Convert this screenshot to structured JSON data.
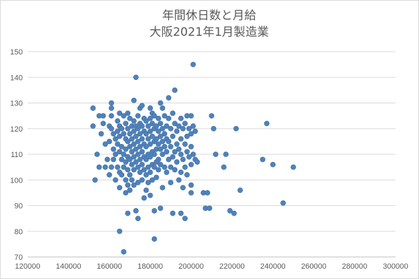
{
  "chart_data": {
    "type": "scatter",
    "title": "年間休日数と月給",
    "subtitle": "大阪2021年1月製造業",
    "xlabel": "",
    "ylabel": "",
    "xlim": [
      120000,
      300000
    ],
    "ylim": [
      70,
      150
    ],
    "x_ticks": [
      "120000",
      "140000",
      "160000",
      "180000",
      "200000",
      "220000",
      "240000",
      "260000",
      "280000",
      "300000"
    ],
    "y_ticks": [
      "70",
      "80",
      "90",
      "100",
      "110",
      "120",
      "130",
      "140",
      "150"
    ],
    "grid": "horizontal",
    "legend": "none",
    "marker_color": "#4f81bd",
    "series": [
      {
        "points": [
          [
            152000,
            128
          ],
          [
            152000,
            121
          ],
          [
            153000,
            100
          ],
          [
            154000,
            110
          ],
          [
            155000,
            125
          ],
          [
            155000,
            105
          ],
          [
            156000,
            118
          ],
          [
            157000,
            122
          ],
          [
            157000,
            125
          ],
          [
            158000,
            105
          ],
          [
            158000,
            114
          ],
          [
            159000,
            108
          ],
          [
            160000,
            102
          ],
          [
            160000,
            115
          ],
          [
            160000,
            121
          ],
          [
            161000,
            130
          ],
          [
            161000,
            128
          ],
          [
            161000,
            125
          ],
          [
            161000,
            120
          ],
          [
            161000,
            105
          ],
          [
            162000,
            118
          ],
          [
            162000,
            112
          ],
          [
            162000,
            108
          ],
          [
            163000,
            116
          ],
          [
            163000,
            110
          ],
          [
            163000,
            100
          ],
          [
            164000,
            123
          ],
          [
            164000,
            119
          ],
          [
            164000,
            114
          ],
          [
            164000,
            105
          ],
          [
            165000,
            126
          ],
          [
            165000,
            121
          ],
          [
            165000,
            117
          ],
          [
            165000,
            111
          ],
          [
            165000,
            103
          ],
          [
            165000,
            97
          ],
          [
            165000,
            80
          ],
          [
            166000,
            120
          ],
          [
            166000,
            113
          ],
          [
            166000,
            108
          ],
          [
            166000,
            102
          ],
          [
            167000,
            125
          ],
          [
            167000,
            118
          ],
          [
            167000,
            110
          ],
          [
            167000,
            105
          ],
          [
            167000,
            72
          ],
          [
            168000,
            122
          ],
          [
            168000,
            116
          ],
          [
            168000,
            112
          ],
          [
            168000,
            107
          ],
          [
            168000,
            100
          ],
          [
            168000,
            95
          ],
          [
            169000,
            126
          ],
          [
            169000,
            120
          ],
          [
            169000,
            115
          ],
          [
            169000,
            109
          ],
          [
            169000,
            104
          ],
          [
            169000,
            98
          ],
          [
            169000,
            87
          ],
          [
            170000,
            124
          ],
          [
            170000,
            118
          ],
          [
            170000,
            113
          ],
          [
            170000,
            108
          ],
          [
            170000,
            102
          ],
          [
            170000,
            96
          ],
          [
            171000,
            121
          ],
          [
            171000,
            116
          ],
          [
            171000,
            111
          ],
          [
            171000,
            106
          ],
          [
            171000,
            100
          ],
          [
            172000,
            131
          ],
          [
            172000,
            123
          ],
          [
            172000,
            119
          ],
          [
            172000,
            114
          ],
          [
            172000,
            109
          ],
          [
            172000,
            104
          ],
          [
            172000,
            98
          ],
          [
            173000,
            140
          ],
          [
            173000,
            121
          ],
          [
            173000,
            117
          ],
          [
            173000,
            112
          ],
          [
            173000,
            107
          ],
          [
            173000,
            88
          ],
          [
            174000,
            125
          ],
          [
            174000,
            120
          ],
          [
            174000,
            115
          ],
          [
            174000,
            110
          ],
          [
            174000,
            105
          ],
          [
            174000,
            99
          ],
          [
            174000,
            85
          ],
          [
            175000,
            128
          ],
          [
            175000,
            122
          ],
          [
            175000,
            118
          ],
          [
            175000,
            113
          ],
          [
            175000,
            108
          ],
          [
            175000,
            103
          ],
          [
            176000,
            129
          ],
          [
            176000,
            121
          ],
          [
            176000,
            116
          ],
          [
            176000,
            111
          ],
          [
            176000,
            106
          ],
          [
            176000,
            100
          ],
          [
            177000,
            124
          ],
          [
            177000,
            119
          ],
          [
            177000,
            114
          ],
          [
            177000,
            109
          ],
          [
            177000,
            104
          ],
          [
            177000,
            93
          ],
          [
            178000,
            123
          ],
          [
            178000,
            118
          ],
          [
            178000,
            113
          ],
          [
            178000,
            108
          ],
          [
            178000,
            102
          ],
          [
            178000,
            96
          ],
          [
            179000,
            121
          ],
          [
            179000,
            116
          ],
          [
            179000,
            110
          ],
          [
            179000,
            105
          ],
          [
            179000,
            99
          ],
          [
            180000,
            128
          ],
          [
            180000,
            124
          ],
          [
            180000,
            119
          ],
          [
            180000,
            114
          ],
          [
            180000,
            109
          ],
          [
            180000,
            103
          ],
          [
            180000,
            94
          ],
          [
            181000,
            126
          ],
          [
            181000,
            122
          ],
          [
            181000,
            117
          ],
          [
            181000,
            111
          ],
          [
            181000,
            106
          ],
          [
            181000,
            100
          ],
          [
            182000,
            125
          ],
          [
            182000,
            120
          ],
          [
            182000,
            115
          ],
          [
            182000,
            110
          ],
          [
            182000,
            105
          ],
          [
            182000,
            88
          ],
          [
            182000,
            77
          ],
          [
            183000,
            121
          ],
          [
            183000,
            116
          ],
          [
            183000,
            112
          ],
          [
            183000,
            107
          ],
          [
            183000,
            101
          ],
          [
            184000,
            124
          ],
          [
            184000,
            119
          ],
          [
            184000,
            114
          ],
          [
            184000,
            108
          ],
          [
            184000,
            104
          ],
          [
            185000,
            130
          ],
          [
            185000,
            122
          ],
          [
            185000,
            117
          ],
          [
            185000,
            112
          ],
          [
            185000,
            106
          ],
          [
            185000,
            89
          ],
          [
            186000,
            128
          ],
          [
            186000,
            120
          ],
          [
            186000,
            115
          ],
          [
            186000,
            110
          ],
          [
            186000,
            97
          ],
          [
            187000,
            125
          ],
          [
            187000,
            118
          ],
          [
            187000,
            113
          ],
          [
            187000,
            105
          ],
          [
            188000,
            121
          ],
          [
            188000,
            116
          ],
          [
            188000,
            111
          ],
          [
            188000,
            103
          ],
          [
            189000,
            132
          ],
          [
            189000,
            124
          ],
          [
            189000,
            115
          ],
          [
            189000,
            108
          ],
          [
            190000,
            120
          ],
          [
            190000,
            113
          ],
          [
            190000,
            105
          ],
          [
            190000,
            99
          ],
          [
            191000,
            126
          ],
          [
            191000,
            117
          ],
          [
            191000,
            109
          ],
          [
            191000,
            87
          ],
          [
            192000,
            135
          ],
          [
            192000,
            122
          ],
          [
            192000,
            111
          ],
          [
            192000,
            104
          ],
          [
            193000,
            119
          ],
          [
            193000,
            114
          ],
          [
            193000,
            107
          ],
          [
            194000,
            121
          ],
          [
            194000,
            112
          ],
          [
            194000,
            100
          ],
          [
            195000,
            124
          ],
          [
            195000,
            116
          ],
          [
            195000,
            110
          ],
          [
            195000,
            103
          ],
          [
            195000,
            87
          ],
          [
            196000,
            120
          ],
          [
            196000,
            108
          ],
          [
            196000,
            97
          ],
          [
            197000,
            122
          ],
          [
            197000,
            114
          ],
          [
            197000,
            105
          ],
          [
            197000,
            85
          ],
          [
            198000,
            125
          ],
          [
            198000,
            117
          ],
          [
            198000,
            111
          ],
          [
            198000,
            102
          ],
          [
            199000,
            120
          ],
          [
            199000,
            109
          ],
          [
            200000,
            125
          ],
          [
            200000,
            118
          ],
          [
            200000,
            113
          ],
          [
            200000,
            106
          ],
          [
            200000,
            98
          ],
          [
            200000,
            95
          ],
          [
            201000,
            145
          ],
          [
            201000,
            121
          ],
          [
            201000,
            110
          ],
          [
            202000,
            119
          ],
          [
            202000,
            108
          ],
          [
            203000,
            107
          ],
          [
            206000,
            95
          ],
          [
            207000,
            89
          ],
          [
            208000,
            95
          ],
          [
            209000,
            89
          ],
          [
            210000,
            125
          ],
          [
            211000,
            120
          ],
          [
            212000,
            110
          ],
          [
            216000,
            105
          ],
          [
            217000,
            110
          ],
          [
            219000,
            88
          ],
          [
            221000,
            87
          ],
          [
            222000,
            120
          ],
          [
            224000,
            96
          ],
          [
            235000,
            108
          ],
          [
            237000,
            122
          ],
          [
            240000,
            106
          ],
          [
            245000,
            91
          ],
          [
            250000,
            105
          ]
        ]
      }
    ]
  }
}
